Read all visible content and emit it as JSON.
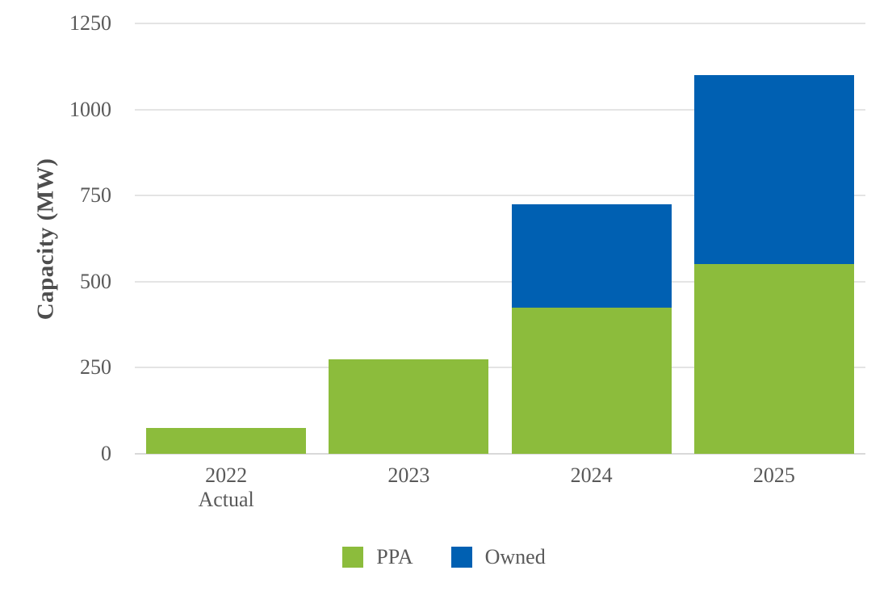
{
  "chart_data": {
    "type": "bar",
    "stacked": true,
    "title": "",
    "xlabel": "",
    "ylabel": "Capacity (MW)",
    "ylim": [
      0,
      1250
    ],
    "y_ticks": [
      0,
      250,
      500,
      750,
      1000,
      1250
    ],
    "grid": true,
    "legend_position": "bottom",
    "categories": [
      "2022 Actual",
      "2023",
      "2024",
      "2025"
    ],
    "category_label_lines": [
      [
        "2022",
        "Actual"
      ],
      [
        "2023"
      ],
      [
        "2024"
      ],
      [
        "2025"
      ]
    ],
    "series": [
      {
        "name": "PPA",
        "color": "#8CBC3C",
        "values": [
          75,
          275,
          425,
          550
        ]
      },
      {
        "name": "Owned",
        "color": "#0060B2",
        "values": [
          0,
          0,
          300,
          550
        ]
      }
    ],
    "totals": [
      75,
      275,
      725,
      1100
    ]
  },
  "colors": {
    "background": "#FFFFFF",
    "grid_line": "#E4E4E4",
    "axis_line": "#D9D9D9",
    "tick_label": "#595959",
    "axis_title": "#4D4D4D"
  }
}
